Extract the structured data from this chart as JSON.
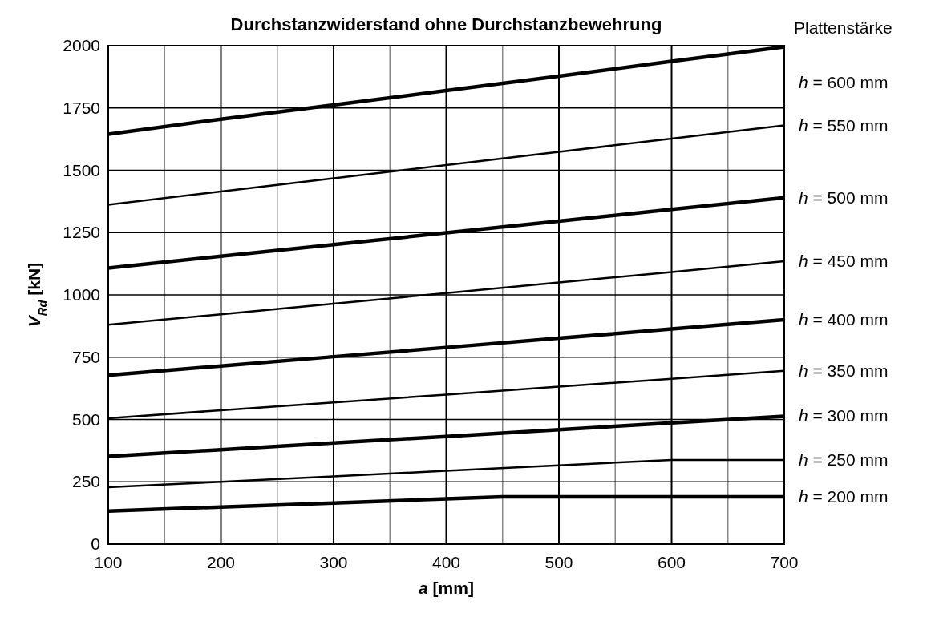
{
  "chart_data": {
    "type": "line",
    "title": "Durchstanzwiderstand ohne Durchstanzbewehrung",
    "xlabel": "a [mm]",
    "ylabel": "V$_{Rd}$ [kN]",
    "legend_title": "Plattenstärke",
    "x": [
      100,
      200,
      300,
      400,
      500,
      600,
      700
    ],
    "xlim": [
      100,
      700
    ],
    "xticks": [
      100,
      {
        "value": 150,
        "label": null
      },
      200,
      {
        "value": 250,
        "label": null
      },
      300,
      {
        "value": 350,
        "label": null
      },
      400,
      {
        "value": 450,
        "label": null
      },
      500,
      {
        "value": 550,
        "label": null
      },
      600,
      {
        "value": 650,
        "label": null
      },
      700
    ],
    "ylim": [
      0,
      2000
    ],
    "yticks": [
      0,
      250,
      500,
      750,
      1000,
      1250,
      1500,
      1750,
      2000
    ],
    "grid": true,
    "series": [
      {
        "name": "h = 600 mm",
        "color": "#000000",
        "values": [
          1645,
          1705,
          1762,
          1820,
          1878,
          1937,
          1995
        ]
      },
      {
        "name": "h = 550 mm",
        "color": "#000000",
        "values": [
          1362,
          1415,
          1468,
          1521,
          1574,
          1627,
          1680
        ]
      },
      {
        "name": "h = 500 mm",
        "color": "#000000",
        "values": [
          1108,
          1155,
          1202,
          1249,
          1296,
          1343,
          1390
        ]
      },
      {
        "name": "h = 450 mm",
        "color": "#000000",
        "values": [
          880,
          922,
          965,
          1007,
          1050,
          1092,
          1135
        ]
      },
      {
        "name": "h = 400 mm",
        "color": "#000000",
        "values": [
          678,
          715,
          752,
          789,
          826,
          863,
          900
        ]
      },
      {
        "name": "h = 350 mm",
        "color": "#000000",
        "values": [
          505,
          537,
          568,
          600,
          632,
          663,
          695
        ]
      },
      {
        "name": "h = 300 mm",
        "color": "#000000",
        "values": [
          352,
          379,
          406,
          432,
          459,
          486,
          513
        ]
      },
      {
        "name": "h = 250 mm",
        "color": "#000000",
        "values": [
          228,
          250,
          272,
          294,
          316,
          338,
          338
        ]
      },
      {
        "name": "h = 200 mm",
        "color": "#000000",
        "x": [
          100,
          200,
          300,
          400,
          450,
          500,
          600,
          700
        ],
        "values": [
          133,
          149,
          165,
          182,
          190,
          190,
          190,
          190
        ]
      }
    ]
  }
}
